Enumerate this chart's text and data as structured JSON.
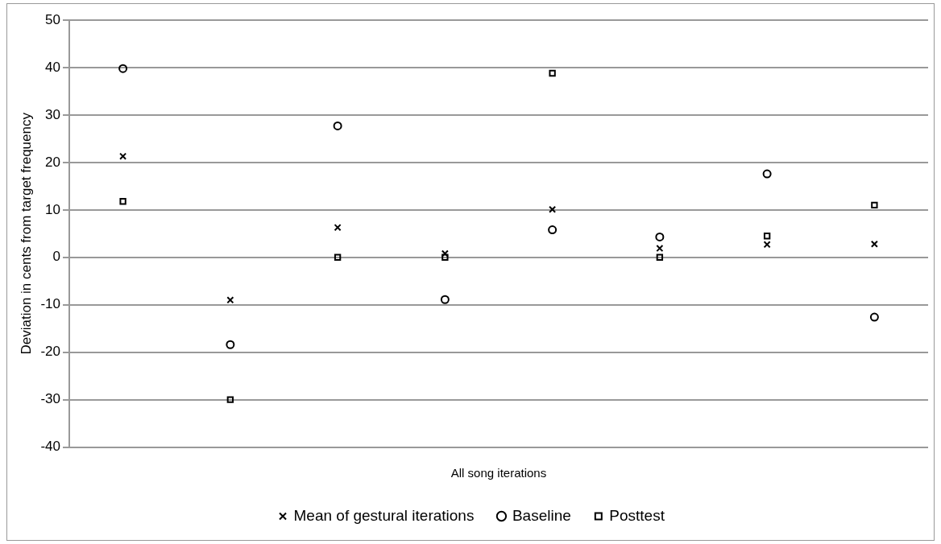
{
  "chart_data": {
    "type": "scatter",
    "xlabel": "All song iterations",
    "ylabel": "Deviation in cents from target frequency",
    "categories": [
      null,
      null,
      null,
      null,
      null,
      null,
      null,
      null
    ],
    "series": [
      {
        "name": "Mean of gestural iterations",
        "color": "#000000",
        "marker": "cross",
        "values": [
          21.3,
          -9,
          6.3,
          0.8,
          10.1,
          1.9,
          2.7,
          2.8
        ]
      },
      {
        "name": "Baseline",
        "color": "#000000",
        "marker": "circle",
        "values": [
          39.8,
          -18.4,
          27.7,
          -8.9,
          5.8,
          4.3,
          17.6,
          -12.6
        ]
      },
      {
        "name": "Posttest",
        "color": "#000000",
        "marker": "square",
        "values": [
          11.8,
          -30,
          0,
          0,
          38.8,
          0,
          4.5,
          11
        ]
      }
    ],
    "ylim": [
      -40,
      50
    ],
    "yticks": [
      -40,
      -30,
      -20,
      -10,
      0,
      10,
      20,
      30,
      40,
      50
    ],
    "grid": "y",
    "legend": "bottom"
  }
}
